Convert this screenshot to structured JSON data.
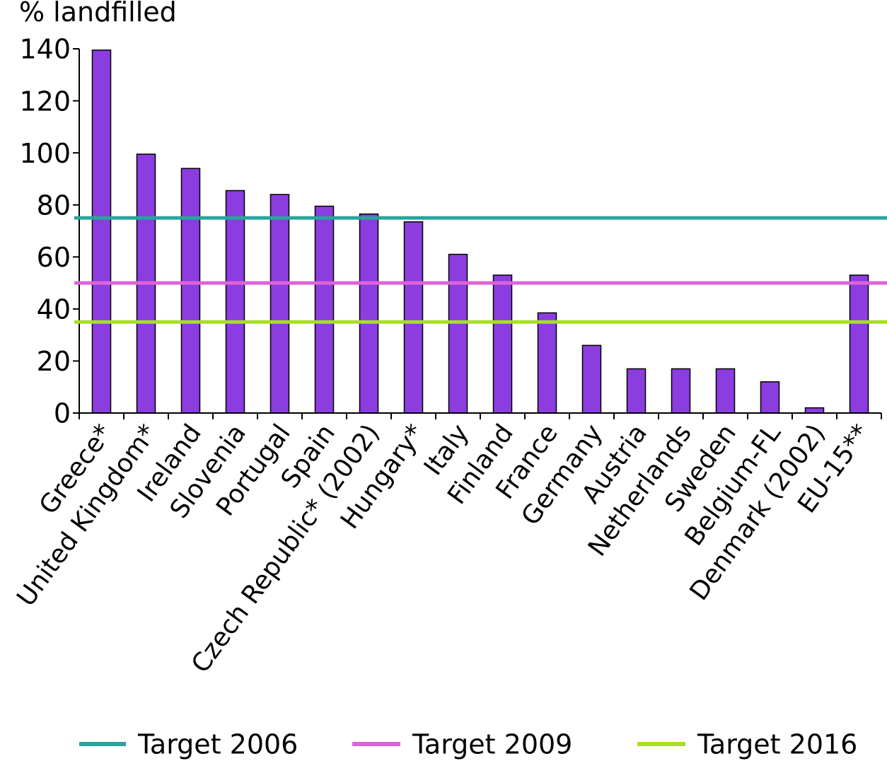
{
  "chart_data": {
    "type": "bar",
    "ylabel": "% landfilled",
    "ylim": [
      0,
      140
    ],
    "yticks": [
      0,
      20,
      40,
      60,
      80,
      100,
      120,
      140
    ],
    "grid": false,
    "legend_position": "bottom",
    "categories": [
      "Greece*",
      "United Kingdom*",
      "Ireland",
      "Slovenia",
      "Portugal",
      "Spain",
      "Czech Republic* (2002)",
      "Hungary*",
      "Italy",
      "Finland",
      "France",
      "Germany",
      "Austria",
      "Netherlands",
      "Sweden",
      "Belgium-FL",
      "Denmark (2002)",
      "EU-15**"
    ],
    "values": [
      139.5,
      99.5,
      94,
      85.5,
      84,
      79.5,
      76.5,
      73.5,
      61,
      53,
      38.5,
      26,
      17,
      17,
      17,
      12,
      2,
      53
    ],
    "bar_color": "#8B3DDF",
    "reference_lines": [
      {
        "name": "Target 2006",
        "value": 75,
        "color": "#29A49C"
      },
      {
        "name": "Target 2009",
        "value": 50,
        "color": "#DF63D8"
      },
      {
        "name": "Target 2016",
        "value": 35,
        "color": "#A8E01E"
      }
    ]
  }
}
